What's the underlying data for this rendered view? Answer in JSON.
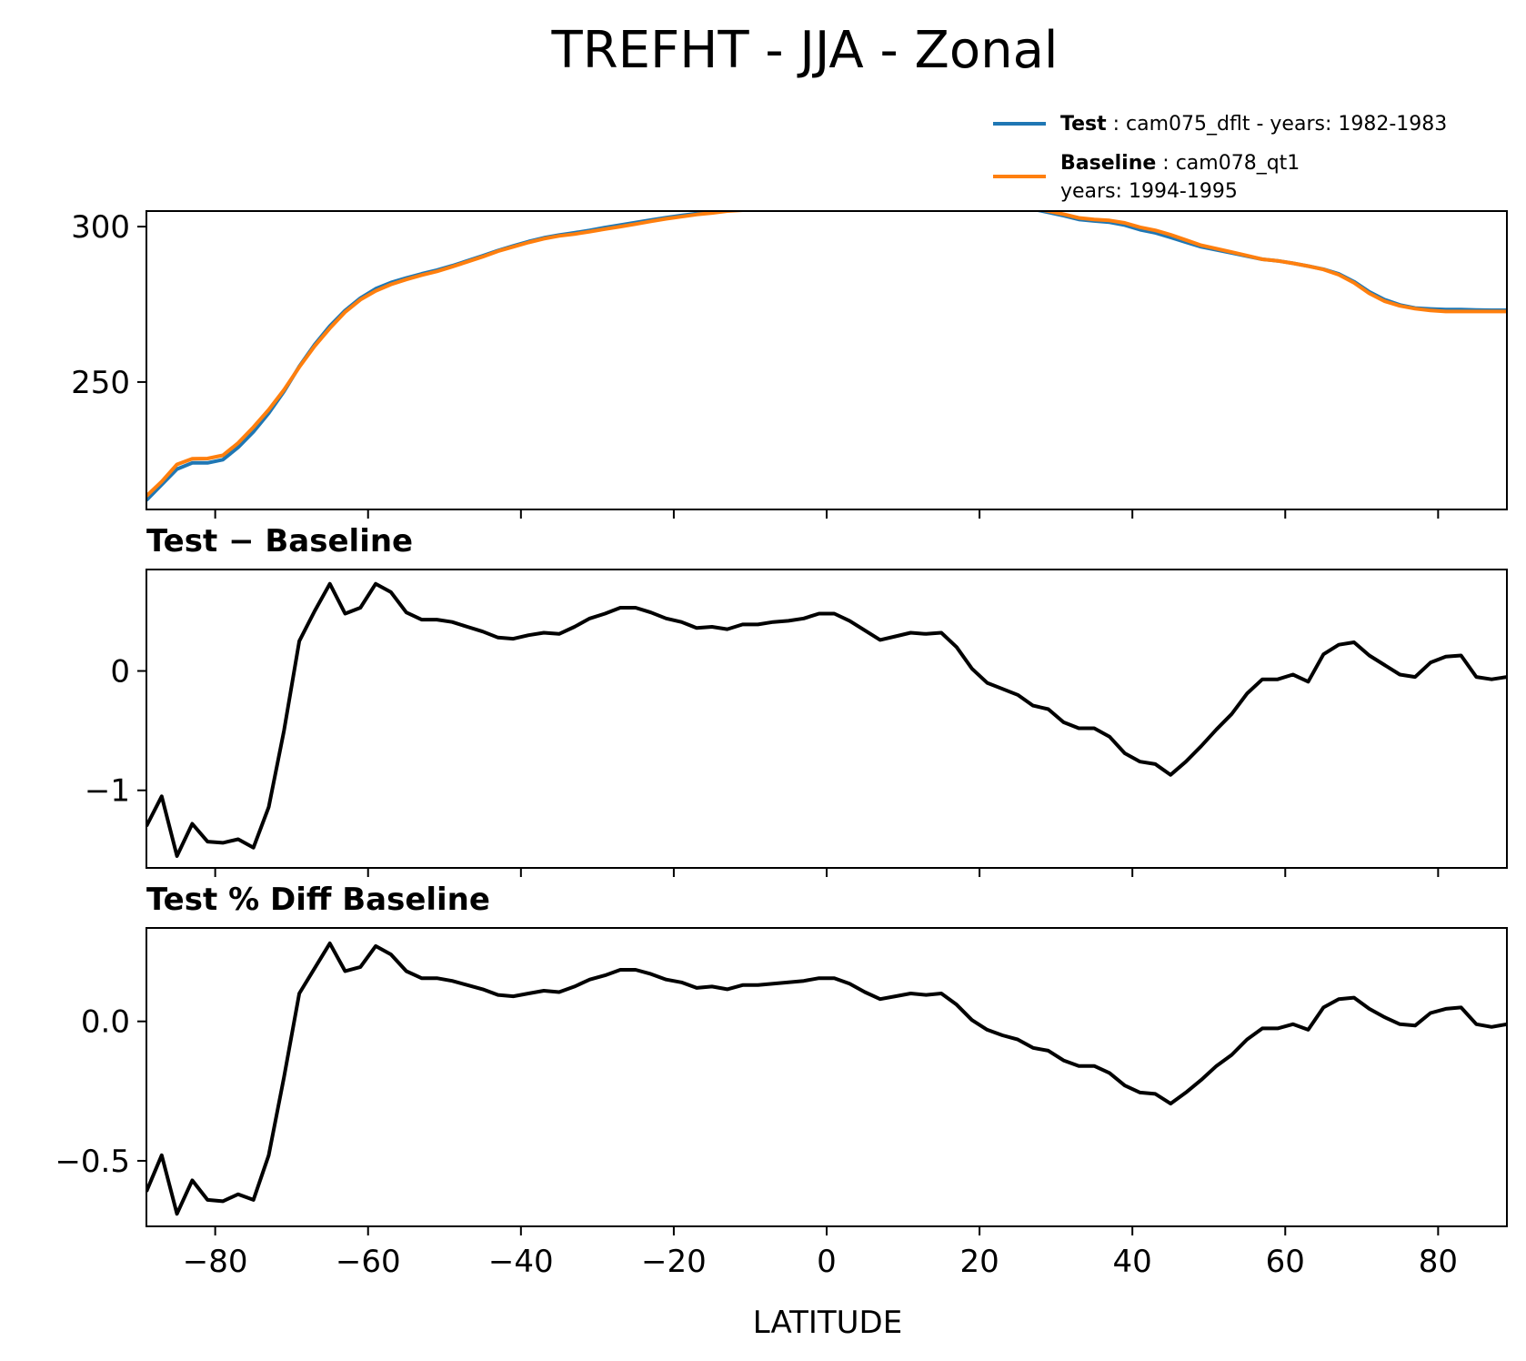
{
  "figure": {
    "title": "TREFHT - JJA - Zonal",
    "xlabel": "LATITUDE",
    "legend": {
      "placement": "top-right",
      "entries": [
        {
          "key": "test",
          "label": "Test",
          "desc": "cam075_dflt - years: 1982-1983",
          "desc2": "",
          "color": "#1f77b4"
        },
        {
          "key": "baseline",
          "label": "Baseline",
          "desc": "cam078_qt1",
          "desc2": "years: 1994-1995",
          "color": "#ff7f0e"
        }
      ]
    }
  },
  "chart_data": [
    {
      "type": "line",
      "title": "",
      "xlim": [
        -89,
        89
      ],
      "ylim": [
        209,
        305
      ],
      "yticks": [
        250,
        300
      ],
      "ytick_labels": [
        "250",
        "300"
      ],
      "x": [
        -89,
        -87,
        -85,
        -83,
        -81,
        -79,
        -77,
        -75,
        -73,
        -71,
        -69,
        -67,
        -65,
        -63,
        -61,
        -59,
        -57,
        -55,
        -53,
        -51,
        -49,
        -47,
        -45,
        -43,
        -41,
        -39,
        -37,
        -35,
        -33,
        -31,
        -29,
        -27,
        -25,
        -23,
        -21,
        -19,
        -17,
        -15,
        -13,
        -11,
        -9,
        -7,
        -5,
        -3,
        -1,
        1,
        3,
        5,
        7,
        9,
        11,
        13,
        15,
        17,
        19,
        21,
        23,
        25,
        27,
        29,
        31,
        33,
        35,
        37,
        39,
        41,
        43,
        45,
        47,
        49,
        51,
        53,
        55,
        57,
        59,
        61,
        63,
        65,
        67,
        69,
        71,
        73,
        75,
        77,
        79,
        81,
        83,
        85,
        87,
        89
      ],
      "series": [
        {
          "name": "Test",
          "color": "#1f77b4",
          "values": [
            212,
            217,
            222,
            224,
            224,
            225,
            229,
            234,
            240,
            247,
            255,
            262,
            268,
            273,
            277,
            280,
            282,
            283.5,
            284.8,
            286,
            287.4,
            289,
            290.6,
            292.3,
            293.8,
            295.2,
            296.4,
            297.3,
            298,
            298.8,
            299.7,
            300.5,
            301.3,
            302.1,
            302.9,
            303.6,
            304.2,
            304.8,
            305.3,
            305.7,
            306,
            306.1,
            306.2,
            306.4,
            306.6,
            306.8,
            307,
            307.1,
            307.3,
            307.5,
            307.6,
            307.7,
            307.8,
            307.8,
            307.6,
            307.4,
            307,
            306.6,
            305.6,
            304.6,
            303.5,
            302.3,
            301.8,
            301.4,
            300.5,
            299,
            298,
            296.5,
            295,
            293.5,
            292.5,
            291.5,
            290.5,
            289.5,
            289,
            288.2,
            287.3,
            286.3,
            284.8,
            282.3,
            279,
            276.5,
            274.8,
            273.8,
            273.5,
            273.3,
            273.3,
            273.2,
            273.1,
            273.1
          ]
        },
        {
          "name": "Baseline",
          "color": "#ff7f0e",
          "values": [
            213.3,
            218,
            223.5,
            225.3,
            225.4,
            226.4,
            230.4,
            235.5,
            241.1,
            247.5,
            254.8,
            261.5,
            267.3,
            272.5,
            276.5,
            279.3,
            281.4,
            283,
            284.4,
            285.6,
            287.1,
            288.7,
            290.3,
            292.1,
            293.5,
            294.9,
            296.1,
            297,
            297.6,
            298.4,
            299.2,
            300,
            300.8,
            301.7,
            302.5,
            303.2,
            303.9,
            304.4,
            305,
            305.3,
            305.6,
            305.7,
            305.8,
            306,
            306.2,
            306.4,
            306.6,
            306.8,
            307,
            307.2,
            307.3,
            307.4,
            307.5,
            307.6,
            307.6,
            307.5,
            307.2,
            306.8,
            305.9,
            305,
            304,
            302.8,
            302.3,
            302,
            301.2,
            299.8,
            298.8,
            297.4,
            295.7,
            294,
            292.9,
            291.8,
            290.7,
            289.5,
            289,
            288.2,
            287.3,
            286.2,
            284.5,
            281.9,
            278.5,
            276,
            274.5,
            273.6,
            273,
            272.7,
            272.7,
            272.7,
            272.7,
            272.7
          ]
        }
      ]
    },
    {
      "type": "line",
      "title": "Test − Baseline",
      "xlim": [
        -89,
        89
      ],
      "ylim": [
        -1.65,
        0.85
      ],
      "yticks": [
        -1,
        0
      ],
      "ytick_labels": [
        "−1",
        "0"
      ],
      "x": [
        -89,
        -87,
        -85,
        -83,
        -81,
        -79,
        -77,
        -75,
        -73,
        -71,
        -69,
        -67,
        -65,
        -63,
        -61,
        -59,
        -57,
        -55,
        -53,
        -51,
        -49,
        -47,
        -45,
        -43,
        -41,
        -39,
        -37,
        -35,
        -33,
        -31,
        -29,
        -27,
        -25,
        -23,
        -21,
        -19,
        -17,
        -15,
        -13,
        -11,
        -9,
        -7,
        -5,
        -3,
        -1,
        1,
        3,
        5,
        7,
        9,
        11,
        13,
        15,
        17,
        19,
        21,
        23,
        25,
        27,
        29,
        31,
        33,
        35,
        37,
        39,
        41,
        43,
        45,
        47,
        49,
        51,
        53,
        55,
        57,
        59,
        61,
        63,
        65,
        67,
        69,
        71,
        73,
        75,
        77,
        79,
        81,
        83,
        85,
        87,
        89
      ],
      "series": [
        {
          "name": "",
          "color": "#000000",
          "values": [
            -1.3,
            -1.05,
            -1.55,
            -1.28,
            -1.43,
            -1.44,
            -1.41,
            -1.48,
            -1.14,
            -0.5,
            0.25,
            0.5,
            0.73,
            0.48,
            0.53,
            0.73,
            0.66,
            0.49,
            0.43,
            0.43,
            0.41,
            0.37,
            0.33,
            0.28,
            0.27,
            0.3,
            0.32,
            0.31,
            0.37,
            0.44,
            0.48,
            0.53,
            0.53,
            0.49,
            0.44,
            0.41,
            0.36,
            0.37,
            0.35,
            0.39,
            0.39,
            0.41,
            0.42,
            0.44,
            0.48,
            0.48,
            0.42,
            0.34,
            0.26,
            0.29,
            0.32,
            0.31,
            0.32,
            0.2,
            0.02,
            -0.1,
            -0.15,
            -0.2,
            -0.29,
            -0.32,
            -0.43,
            -0.48,
            -0.48,
            -0.55,
            -0.69,
            -0.76,
            -0.78,
            -0.87,
            -0.76,
            -0.63,
            -0.49,
            -0.36,
            -0.19,
            -0.07,
            -0.07,
            -0.03,
            -0.09,
            0.14,
            0.22,
            0.24,
            0.13,
            0.05,
            -0.03,
            -0.05,
            0.07,
            0.12,
            0.13,
            -0.05,
            -0.07,
            -0.05
          ]
        }
      ]
    },
    {
      "type": "line",
      "title": "Test % Diff Baseline",
      "xlim": [
        -89,
        89
      ],
      "ylim": [
        -0.735,
        0.335
      ],
      "yticks": [
        -0.5,
        0.0
      ],
      "ytick_labels": [
        "−0.5",
        "0.0"
      ],
      "x": [
        -89,
        -87,
        -85,
        -83,
        -81,
        -79,
        -77,
        -75,
        -73,
        -71,
        -69,
        -67,
        -65,
        -63,
        -61,
        -59,
        -57,
        -55,
        -53,
        -51,
        -49,
        -47,
        -45,
        -43,
        -41,
        -39,
        -37,
        -35,
        -33,
        -31,
        -29,
        -27,
        -25,
        -23,
        -21,
        -19,
        -17,
        -15,
        -13,
        -11,
        -9,
        -7,
        -5,
        -3,
        -1,
        1,
        3,
        5,
        7,
        9,
        11,
        13,
        15,
        17,
        19,
        21,
        23,
        25,
        27,
        29,
        31,
        33,
        35,
        37,
        39,
        41,
        43,
        45,
        47,
        49,
        51,
        53,
        55,
        57,
        59,
        61,
        63,
        65,
        67,
        69,
        71,
        73,
        75,
        77,
        79,
        81,
        83,
        85,
        87,
        89
      ],
      "series": [
        {
          "name": "",
          "color": "#000000",
          "values": [
            -0.61,
            -0.48,
            -0.69,
            -0.57,
            -0.64,
            -0.645,
            -0.62,
            -0.64,
            -0.48,
            -0.2,
            0.1,
            0.19,
            0.28,
            0.18,
            0.195,
            0.27,
            0.24,
            0.18,
            0.155,
            0.155,
            0.145,
            0.13,
            0.115,
            0.095,
            0.09,
            0.1,
            0.11,
            0.105,
            0.125,
            0.15,
            0.165,
            0.185,
            0.185,
            0.17,
            0.15,
            0.14,
            0.12,
            0.125,
            0.115,
            0.13,
            0.13,
            0.135,
            0.14,
            0.145,
            0.155,
            0.155,
            0.135,
            0.105,
            0.08,
            0.09,
            0.1,
            0.095,
            0.1,
            0.06,
            0.005,
            -0.03,
            -0.05,
            -0.065,
            -0.095,
            -0.105,
            -0.14,
            -0.16,
            -0.16,
            -0.185,
            -0.23,
            -0.255,
            -0.26,
            -0.295,
            -0.255,
            -0.21,
            -0.16,
            -0.12,
            -0.065,
            -0.025,
            -0.025,
            -0.01,
            -0.03,
            0.05,
            0.08,
            0.085,
            0.045,
            0.015,
            -0.01,
            -0.015,
            0.03,
            0.045,
            0.05,
            -0.01,
            -0.02,
            -0.01
          ]
        }
      ]
    }
  ],
  "shared_xaxis": {
    "ticks": [
      -80,
      -60,
      -40,
      -20,
      0,
      20,
      40,
      60,
      80
    ],
    "tick_labels": [
      "−80",
      "−60",
      "−40",
      "−20",
      "0",
      "20",
      "40",
      "60",
      "80"
    ]
  }
}
